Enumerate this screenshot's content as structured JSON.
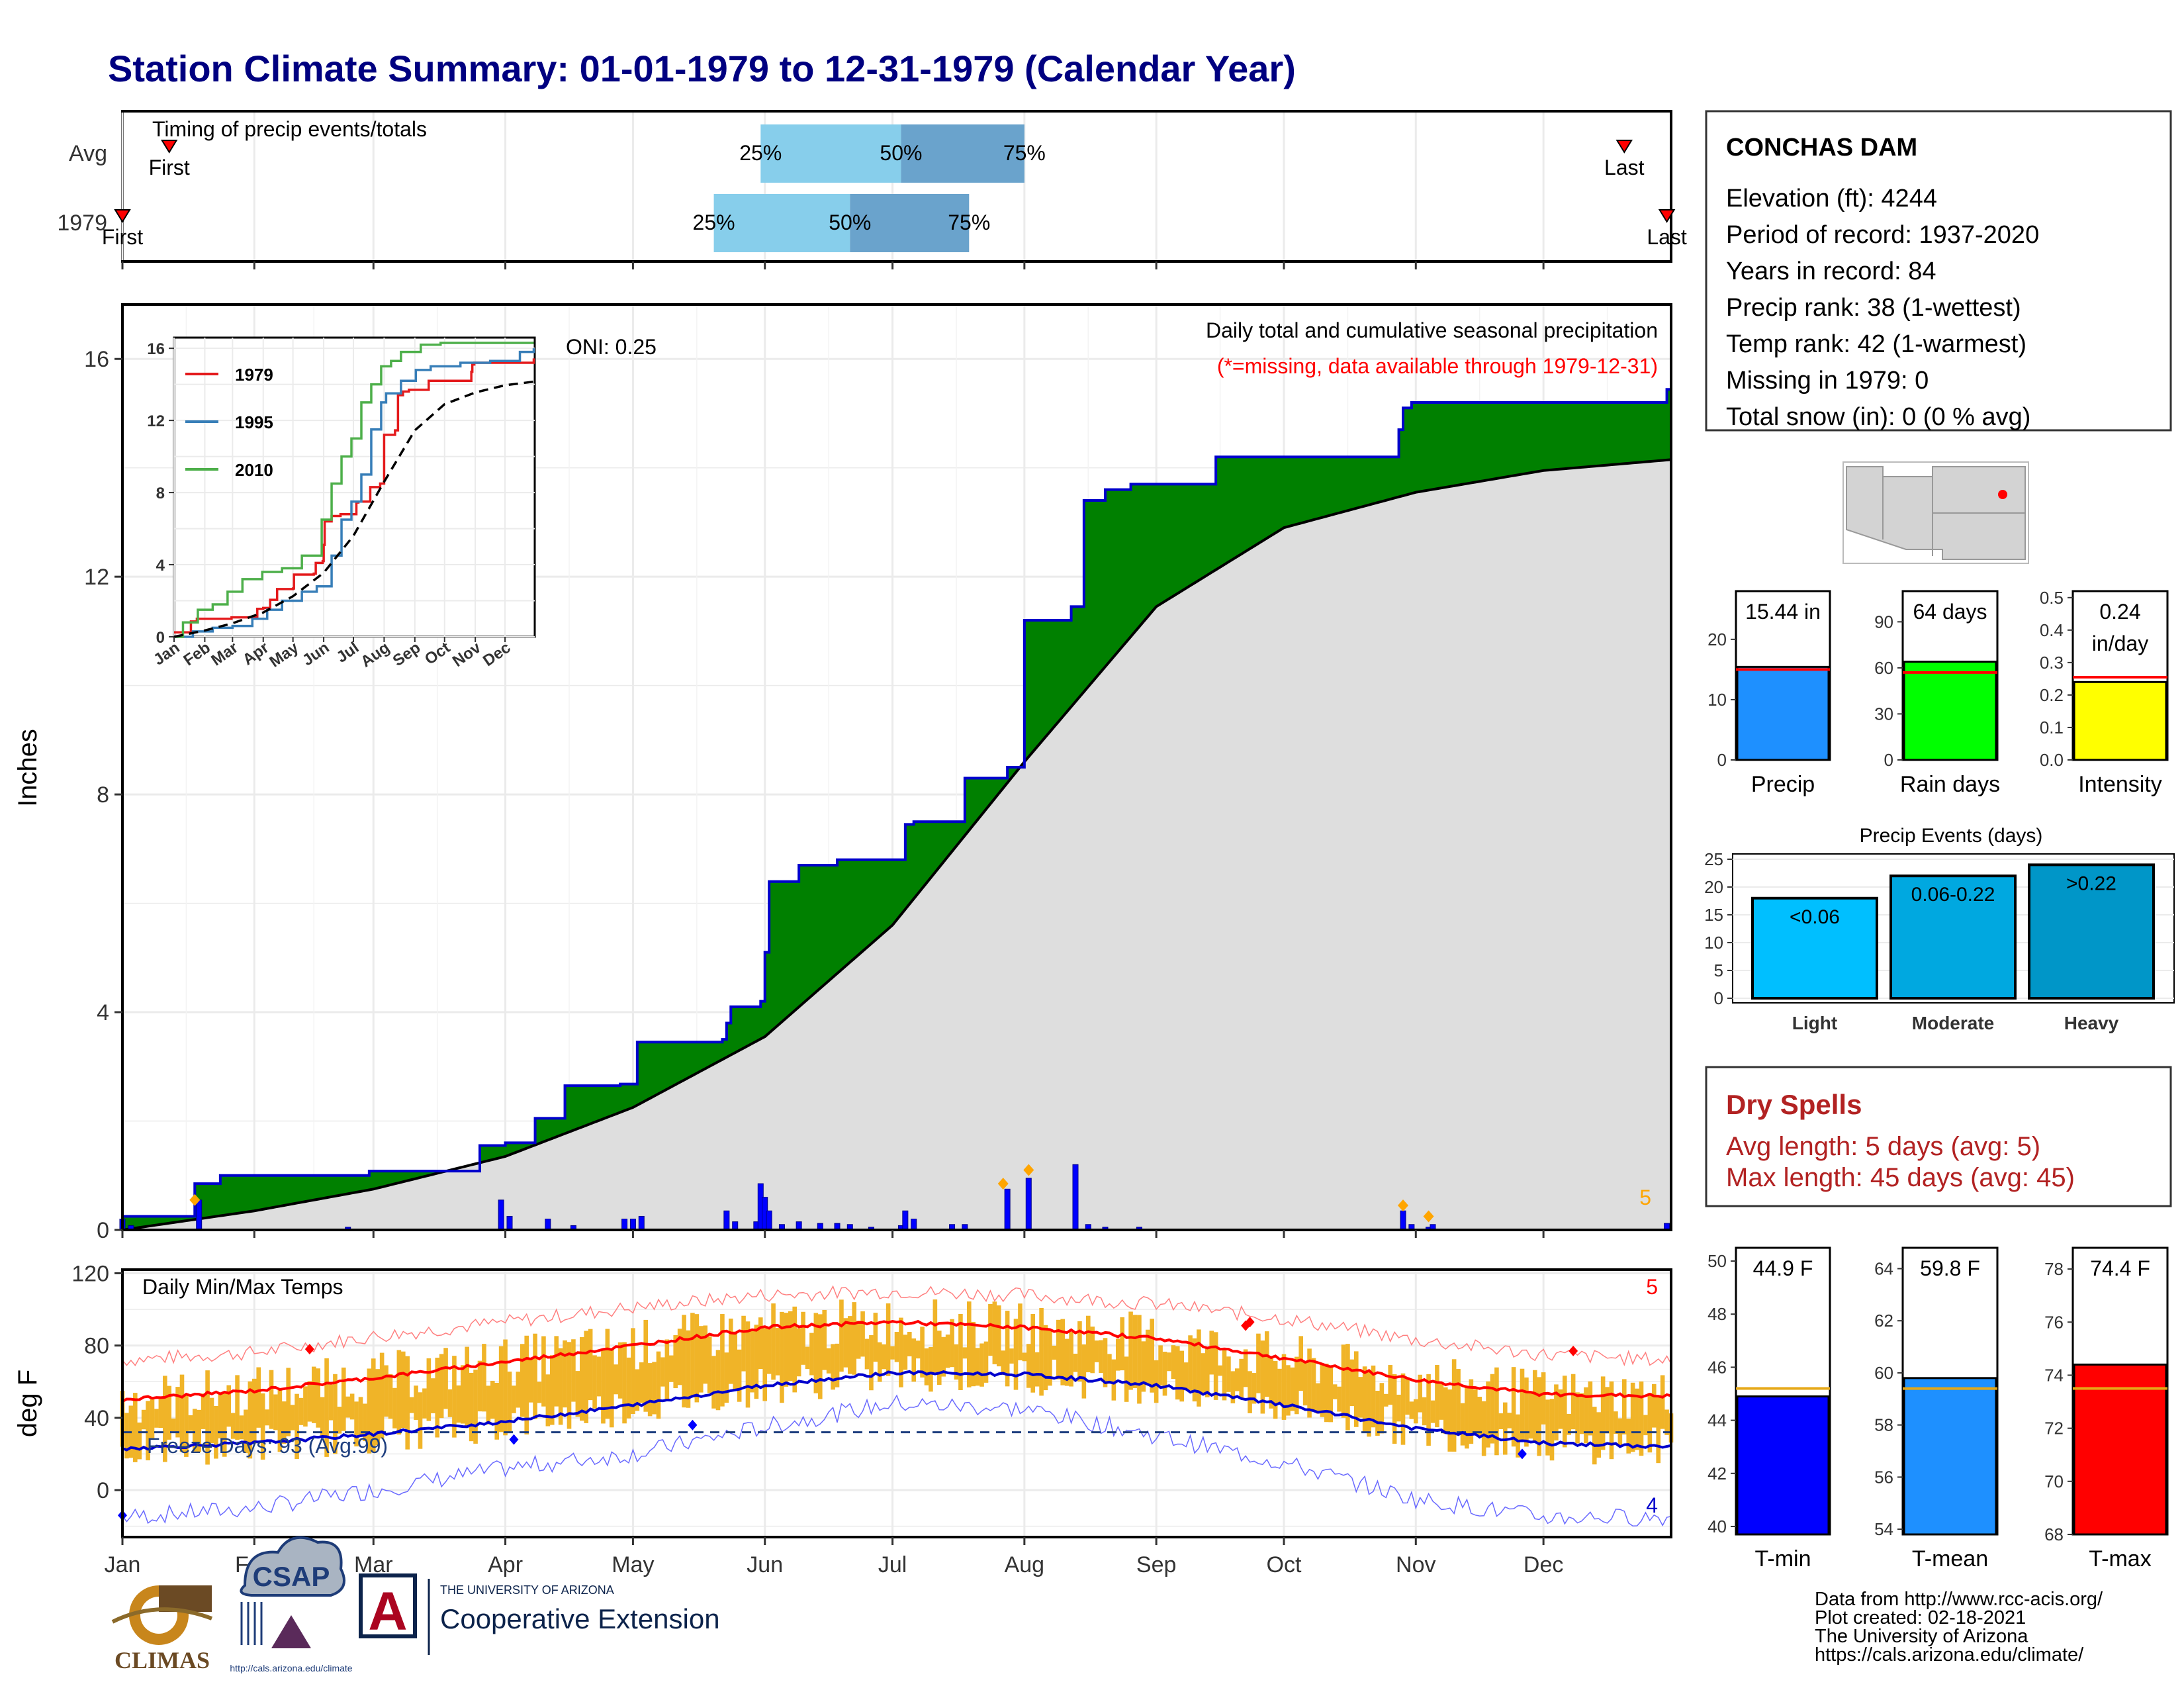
{
  "title": "Station Climate Summary: 01-01-1979 to 12-31-1979 (Calendar Year)",
  "months": [
    "Jan",
    "Feb",
    "Mar",
    "Apr",
    "May",
    "Jun",
    "Jul",
    "Aug",
    "Sep",
    "Oct",
    "Nov",
    "Dec"
  ],
  "colors": {
    "title": "#000080",
    "cum_fill": "#008000",
    "cum_line": "#0000cc",
    "avg_fill": "#dedede",
    "bars_light": "#87ceeb",
    "bars_dark": "#6aa3cc",
    "tmax": "#ff0000",
    "tmin": "#0000cc",
    "temp_bar": "#f0b428",
    "drought": "#b22222"
  },
  "timing": {
    "label": "Timing of precip events/totals",
    "rows": [
      {
        "name": "Avg",
        "first_label": "First",
        "last_label": "Last",
        "first_day": 12,
        "last_day": 354,
        "p25_label": "25%",
        "p50_label": "50%",
        "p75_label": "75%",
        "p25_day": 151,
        "p50_day": 184,
        "p75_day": 213
      },
      {
        "name": "1979",
        "first_label": "First",
        "last_label": "Last",
        "first_day": 1,
        "last_day": 364,
        "p25_label": "25%",
        "p50_label": "50%",
        "p75_label": "75%",
        "p25_day": 140,
        "p50_day": 172,
        "p75_day": 200
      }
    ]
  },
  "chart_data": [
    {
      "type": "area",
      "title": "Daily total and cumulative seasonal precipitation",
      "subtitle": "(*=missing, data available through 1979-12-31)",
      "ylabel": "Inches",
      "ylim": [
        0,
        17
      ],
      "yticks": [
        "0",
        "4",
        "8",
        "12",
        "16"
      ],
      "oni_label": "ONI: 0.25",
      "corner_label": "5",
      "series": [
        {
          "name": "1979 cumulative",
          "x": [
            "01-01",
            "01-18",
            "01-24",
            "02-28",
            "03-26",
            "04-01",
            "04-08",
            "04-15",
            "04-28",
            "05-01",
            "05-02",
            "05-22",
            "05-23",
            "05-24",
            "05-31",
            "06-01",
            "06-02",
            "06-09",
            "06-18",
            "06-25",
            "07-04",
            "07-06",
            "07-15",
            "07-18",
            "07-28",
            "08-01",
            "08-12",
            "08-15",
            "08-20",
            "08-26",
            "09-15",
            "09-28",
            "10-28",
            "10-29",
            "10-31",
            "12-30"
          ],
          "y": [
            0.25,
            0.85,
            1.0,
            1.08,
            1.55,
            1.6,
            2.05,
            2.65,
            2.68,
            2.68,
            3.45,
            3.5,
            3.8,
            4.1,
            4.2,
            5.1,
            6.4,
            6.7,
            6.8,
            6.8,
            7.45,
            7.5,
            7.5,
            8.3,
            8.5,
            11.2,
            11.45,
            13.4,
            13.6,
            13.7,
            14.2,
            14.2,
            14.7,
            15.1,
            15.2,
            15.44
          ]
        },
        {
          "name": "Average cumulative",
          "x": [
            "01-01",
            "02-01",
            "03-01",
            "04-01",
            "05-01",
            "06-01",
            "07-01",
            "08-01",
            "09-01",
            "10-01",
            "11-01",
            "12-01",
            "12-31"
          ],
          "y": [
            0.0,
            0.35,
            0.75,
            1.35,
            2.25,
            3.55,
            5.6,
            8.6,
            11.45,
            12.9,
            13.55,
            13.95,
            14.15
          ]
        }
      ],
      "daily_bars": {
        "x": [
          "01-01",
          "01-03",
          "01-19",
          "02-23",
          "03-31",
          "04-02",
          "04-11",
          "04-17",
          "04-29",
          "05-01",
          "05-03",
          "05-23",
          "05-25",
          "05-30",
          "05-31",
          "06-01",
          "06-02",
          "06-05",
          "06-09",
          "06-14",
          "06-18",
          "06-21",
          "06-26",
          "07-03",
          "07-04",
          "07-06",
          "07-15",
          "07-18",
          "07-28",
          "08-02",
          "08-13",
          "08-16",
          "08-20",
          "08-28",
          "10-29",
          "10-31",
          "11-04",
          "11-05",
          "12-30"
        ],
        "y": [
          0.2,
          0.08,
          0.55,
          0.05,
          0.55,
          0.25,
          0.2,
          0.08,
          0.2,
          0.2,
          0.25,
          0.35,
          0.15,
          0.15,
          0.85,
          0.6,
          0.35,
          0.1,
          0.15,
          0.12,
          0.12,
          0.1,
          0.05,
          0.08,
          0.35,
          0.2,
          0.1,
          0.1,
          0.75,
          0.95,
          1.2,
          0.1,
          0.05,
          0.05,
          0.35,
          0.1,
          0.05,
          0.1,
          0.12
        ]
      },
      "event_markers": {
        "x": [
          "01-18",
          "07-27",
          "08-02",
          "10-29",
          "11-04"
        ],
        "y": [
          0.55,
          0.85,
          1.1,
          0.45,
          0.25
        ]
      }
    },
    {
      "type": "line",
      "title": "",
      "legend": [
        "1979",
        "1995",
        "2010"
      ],
      "xticks": [
        "Jan",
        "Feb",
        "Mar",
        "Apr",
        "May",
        "Jun",
        "Jul",
        "Aug",
        "Sep",
        "Oct",
        "Nov",
        "Dec"
      ],
      "yticks": [
        "0",
        "4",
        "8",
        "12",
        "16"
      ],
      "ylim": [
        0,
        16.3
      ],
      "series": [
        {
          "name": "1979",
          "color": "#e41a1c",
          "x": [
            1,
            18,
            24,
            59,
            85,
            91,
            98,
            105,
            121,
            122,
            142,
            144,
            151,
            152,
            153,
            160,
            169,
            176,
            185,
            187,
            196,
            199,
            209,
            213,
            224,
            227,
            232,
            238,
            258,
            271,
            301,
            302,
            304,
            364
          ],
          "y": [
            0.25,
            0.85,
            1.0,
            1.08,
            1.55,
            1.6,
            2.05,
            2.65,
            2.68,
            3.45,
            3.5,
            4.1,
            4.2,
            5.1,
            6.4,
            6.7,
            6.8,
            6.8,
            7.45,
            7.5,
            7.5,
            8.3,
            8.5,
            11.2,
            11.45,
            13.4,
            13.6,
            13.7,
            14.2,
            14.2,
            14.7,
            15.1,
            15.2,
            15.44
          ]
        },
        {
          "name": "1995",
          "color": "#377eb8",
          "x": [
            1,
            20,
            40,
            60,
            80,
            95,
            110,
            130,
            145,
            160,
            170,
            180,
            190,
            200,
            210,
            215,
            230,
            245,
            260,
            290,
            320,
            350,
            364
          ],
          "y": [
            0,
            0.3,
            0.5,
            0.6,
            1.0,
            1.5,
            2.0,
            2.5,
            2.8,
            4.5,
            6.5,
            7.5,
            9.0,
            11.5,
            13.0,
            13.5,
            14.2,
            14.8,
            15.0,
            15.2,
            15.3,
            15.8,
            16.0
          ]
        },
        {
          "name": "2010",
          "color": "#4daf4a",
          "x": [
            1,
            10,
            25,
            40,
            55,
            70,
            90,
            110,
            130,
            150,
            160,
            170,
            180,
            190,
            200,
            210,
            220,
            230,
            250,
            270,
            290,
            320,
            364
          ],
          "y": [
            0,
            0.8,
            1.5,
            1.8,
            2.5,
            3.2,
            3.6,
            3.8,
            4.5,
            6.5,
            8.5,
            10.0,
            11.0,
            13.0,
            14.0,
            15.0,
            15.3,
            15.8,
            16.2,
            16.3,
            16.3,
            16.3,
            16.3
          ]
        },
        {
          "name": "avg",
          "color": "#000000",
          "x": [
            1,
            32,
            60,
            91,
            121,
            152,
            182,
            213,
            244,
            274,
            305,
            335,
            364
          ],
          "y": [
            0,
            0.35,
            0.75,
            1.35,
            2.25,
            3.55,
            5.6,
            8.6,
            11.45,
            12.9,
            13.55,
            13.95,
            14.15
          ]
        }
      ]
    },
    {
      "type": "line",
      "title": "Daily Min/Max Temps",
      "ylabel": "deg F",
      "ylim": [
        -26,
        122
      ],
      "yticks": [
        "0",
        "40",
        "80",
        "120"
      ],
      "freeze_label": "Freeze Days: 93 (Avg:99)",
      "freeze_line": 32,
      "corner_top": "5",
      "corner_bottom": "4",
      "normals": {
        "x": [
          1,
          32,
          60,
          91,
          121,
          152,
          182,
          213,
          244,
          274,
          305,
          335,
          364
        ],
        "tmax": [
          50,
          55,
          62,
          71,
          80,
          90,
          93,
          90,
          84,
          73,
          61,
          53,
          52
        ],
        "tmin": [
          23,
          26,
          31,
          38,
          47,
          58,
          65,
          64,
          58,
          47,
          34,
          26,
          24
        ],
        "record_high": [
          72,
          76,
          85,
          93,
          101,
          108,
          110,
          108,
          103,
          95,
          83,
          75,
          72
        ],
        "record_low": [
          -15,
          -10,
          0,
          12,
          20,
          35,
          48,
          45,
          30,
          15,
          -5,
          -15,
          -15
        ]
      },
      "records_set": {
        "high_x": [
          45,
          265,
          266,
          342
        ],
        "high_y": [
          78,
          91,
          93,
          77
        ],
        "low_x": [
          1,
          93,
          135,
          330
        ],
        "low_y": [
          -14,
          28,
          36,
          20
        ]
      }
    },
    {
      "type": "bar",
      "title": "",
      "categories": [
        "Precip",
        "Rain days",
        "Intensity"
      ],
      "values": [
        15.44,
        64,
        0.24
      ],
      "avg_lines": [
        15.0,
        57,
        0.255
      ],
      "value_labels": [
        "15.44 in",
        "64 days",
        "0.24 in/day"
      ],
      "value_labels_parts": [
        [
          "15.44 in"
        ],
        [
          "64 days"
        ],
        [
          "0.24",
          "in/day"
        ]
      ],
      "yticks": [
        [
          "0",
          "10",
          "20"
        ],
        [
          "0",
          "30",
          "60",
          "90"
        ],
        [
          "0.0",
          "0.1",
          "0.2",
          "0.3",
          "0.4",
          "0.5"
        ]
      ],
      "ylims": [
        [
          0,
          28
        ],
        [
          0,
          110
        ],
        [
          0,
          0.52
        ]
      ],
      "bar_colors": [
        "#1e90ff",
        "#00ff00",
        "#ffff00"
      ]
    },
    {
      "type": "bar",
      "title": "Precip Events (days)",
      "categories": [
        "Light",
        "Moderate",
        "Heavy"
      ],
      "values": [
        18,
        22,
        24
      ],
      "value_labels": [
        "<0.06",
        "0.06-0.22",
        ">0.22"
      ],
      "yticks": [
        "0",
        "5",
        "10",
        "15",
        "20",
        "25"
      ],
      "ylim": [
        0,
        25
      ],
      "bar_colors": [
        "#00bfff",
        "#00a8e0",
        "#0096c8"
      ]
    },
    {
      "type": "bar",
      "title": "",
      "categories": [
        "T-min",
        "T-mean",
        "T-max"
      ],
      "values": [
        44.9,
        59.8,
        74.4
      ],
      "avg_lines": [
        45.2,
        59.4,
        73.5
      ],
      "value_labels": [
        "44.9 F",
        "59.8 F",
        "74.4 F"
      ],
      "yticks": [
        [
          "40",
          "42",
          "44",
          "46",
          "48",
          "50"
        ],
        [
          "54",
          "56",
          "58",
          "60",
          "62",
          "64"
        ],
        [
          "68",
          "70",
          "72",
          "74",
          "76",
          "78"
        ]
      ],
      "ylims": [
        [
          39.7,
          50.5
        ],
        [
          53.8,
          64.8
        ],
        [
          68,
          78.8
        ]
      ],
      "bar_colors": [
        "#0000ff",
        "#1e90ff",
        "#ff0000"
      ]
    }
  ],
  "station": {
    "name": "CONCHAS DAM",
    "lines": [
      "Elevation (ft): 4244",
      "Period of record: 1937-2020",
      "Years in record: 84",
      "Precip rank: 38 (1-wettest)",
      "Temp rank: 42 (1-warmest)",
      "Missing in 1979: 0",
      "Total snow (in): 0 (0 % avg)"
    ]
  },
  "dry_spells": {
    "title": "Dry Spells",
    "lines": [
      "Avg length: 5 days (avg: 5)",
      "Max length: 45 days (avg: 45)"
    ]
  },
  "footer": {
    "credits": [
      "Data from http://www.rcc-acis.org/",
      "Plot created: 02-18-2021",
      "The University of Arizona",
      "https://cals.arizona.edu/climate/"
    ],
    "climas": "CLIMAS",
    "csap": "CSAP",
    "csap_url": "http://cals.arizona.edu/climate",
    "ua_small": "THE UNIVERSITY OF ARIZONA",
    "ua_big": "Cooperative Extension",
    "ua_letter": "A"
  }
}
